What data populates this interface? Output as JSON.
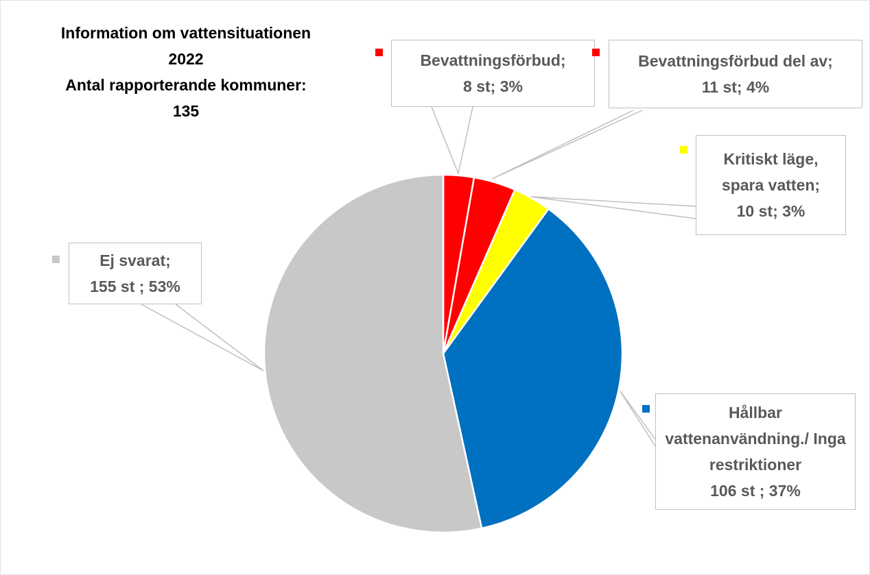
{
  "chart_data": {
    "type": "pie",
    "title": [
      "Information om vattensituationen",
      "2022",
      "Antal rapporterande kommuner:",
      "135"
    ],
    "categories": [
      "Bevattningsförbud;",
      "Bevattningsförbud del av;",
      "Kritiskt läge, spara vatten;",
      "Hållbar vattenanvändning./ Inga restriktioner",
      "Ej svarat;"
    ],
    "values": [
      8,
      11,
      10,
      106,
      155
    ],
    "value_labels": [
      "8 st; 3%",
      "11 st; 4%",
      "10 st; 3%",
      "106 st ; 37%",
      "155 st ; 53%"
    ],
    "colors": [
      "#ff0000",
      "#ff0000",
      "#ffff00",
      "#0070c0",
      "#c8c8c8"
    ]
  }
}
